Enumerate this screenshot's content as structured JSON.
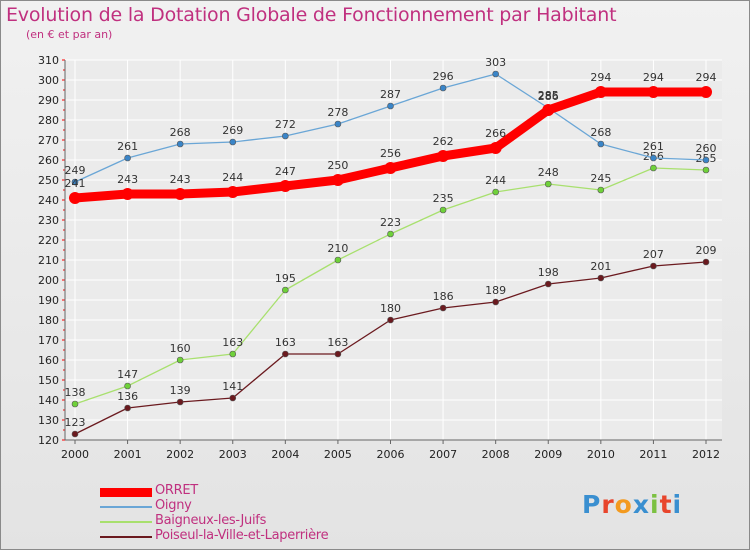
{
  "title": "Evolution de la Dotation Globale de Fonctionnement par Habitant",
  "subtitle": "(en € et par an)",
  "logo": "Proxiti",
  "colors": {
    "title": "#c0307f",
    "axis_tick": "#ff0000"
  },
  "chart_data": {
    "type": "line",
    "title": "Evolution de la Dotation Globale de Fonctionnement par Habitant",
    "subtitle": "(en € et par an)",
    "xlabel": "",
    "ylabel": "",
    "x": [
      "2000",
      "2001",
      "2002",
      "2003",
      "2004",
      "2005",
      "2006",
      "2007",
      "2008",
      "2009",
      "2010",
      "2011",
      "2012"
    ],
    "ylim": [
      120,
      310
    ],
    "yticks": [
      120,
      130,
      140,
      150,
      160,
      170,
      180,
      190,
      200,
      210,
      220,
      230,
      240,
      250,
      260,
      270,
      280,
      290,
      300,
      310
    ],
    "grid": true,
    "legend_position": "bottom-left",
    "series": [
      {
        "name": "Poiseul-la-Ville-et-Laperrière",
        "color": "#6b1a1f",
        "marker": "#6b1a1f",
        "width": 1.3,
        "values": [
          123,
          136,
          139,
          141,
          163,
          163,
          180,
          186,
          189,
          198,
          201,
          207,
          209
        ]
      },
      {
        "name": "Baigneux-les-Juifs",
        "color": "#a8e06e",
        "marker": "#6fd13a",
        "width": 1.3,
        "values": [
          138,
          147,
          160,
          163,
          195,
          210,
          223,
          235,
          244,
          248,
          245,
          256,
          255
        ]
      },
      {
        "name": "Oigny",
        "color": "#6aa6d6",
        "marker": "#3a85c8",
        "width": 1.3,
        "values": [
          249,
          261,
          268,
          269,
          272,
          278,
          287,
          296,
          303,
          286,
          268,
          261,
          260
        ]
      },
      {
        "name": "ORRET",
        "color": "#ff0000",
        "marker": "#ff0000",
        "width": 9,
        "values": [
          241,
          243,
          243,
          244,
          247,
          250,
          256,
          262,
          266,
          285,
          294,
          294,
          294
        ]
      }
    ],
    "legend": [
      "ORRET",
      "Oigny",
      "Baigneux-les-Juifs",
      "Poiseul-la-Ville-et-Laperrière"
    ]
  }
}
